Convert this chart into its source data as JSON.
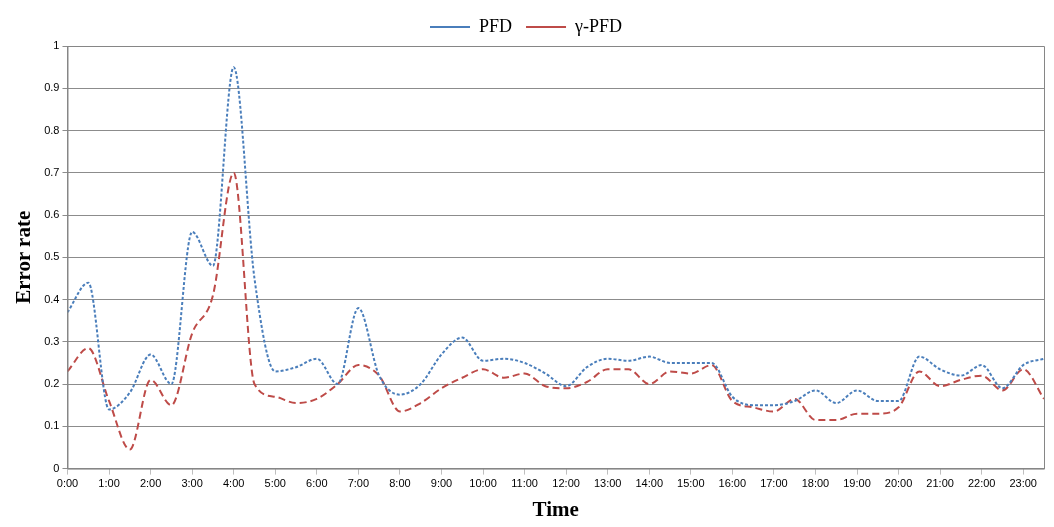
{
  "chart_data": {
    "type": "line",
    "xlabel": "Time",
    "ylabel": "Error rate",
    "x": [
      0,
      0.5,
      1,
      1.5,
      2,
      2.5,
      3,
      3.5,
      4,
      4.5,
      5,
      5.5,
      6,
      6.5,
      7,
      7.5,
      8,
      8.5,
      9,
      9.5,
      10,
      10.5,
      11,
      11.5,
      12,
      12.5,
      13,
      13.5,
      14,
      14.5,
      15,
      15.5,
      16,
      16.5,
      17,
      17.5,
      18,
      18.5,
      19,
      19.5,
      20,
      20.5,
      21,
      21.5,
      22,
      22.5,
      23,
      23.5
    ],
    "series": [
      {
        "name": "PFD",
        "color": "#4a7ebb",
        "line_style": "dotted",
        "values": [
          0.37,
          0.44,
          0.14,
          0.18,
          0.27,
          0.2,
          0.56,
          0.48,
          0.95,
          0.45,
          0.23,
          0.24,
          0.26,
          0.2,
          0.38,
          0.22,
          0.175,
          0.2,
          0.27,
          0.31,
          0.255,
          0.26,
          0.25,
          0.225,
          0.195,
          0.24,
          0.26,
          0.255,
          0.265,
          0.25,
          0.25,
          0.25,
          0.17,
          0.15,
          0.15,
          0.16,
          0.185,
          0.155,
          0.185,
          0.16,
          0.16,
          0.265,
          0.235,
          0.22,
          0.245,
          0.19,
          0.245,
          0.26
        ]
      },
      {
        "name": "γ-PFD",
        "color": "#be4b48",
        "line_style": "dashed",
        "values": [
          0.23,
          0.285,
          0.16,
          0.045,
          0.21,
          0.15,
          0.32,
          0.41,
          0.7,
          0.2,
          0.17,
          0.155,
          0.165,
          0.2,
          0.245,
          0.22,
          0.135,
          0.155,
          0.19,
          0.215,
          0.235,
          0.215,
          0.225,
          0.195,
          0.19,
          0.205,
          0.235,
          0.235,
          0.2,
          0.23,
          0.225,
          0.245,
          0.16,
          0.145,
          0.135,
          0.165,
          0.115,
          0.115,
          0.13,
          0.13,
          0.145,
          0.23,
          0.195,
          0.21,
          0.22,
          0.185,
          0.235,
          0.165
        ]
      }
    ],
    "xlim": [
      0,
      23.5
    ],
    "xticks": [
      {
        "value": 0,
        "label": "0:00"
      },
      {
        "value": 1,
        "label": "1:00"
      },
      {
        "value": 2,
        "label": "2:00"
      },
      {
        "value": 3,
        "label": "3:00"
      },
      {
        "value": 4,
        "label": "4:00"
      },
      {
        "value": 5,
        "label": "5:00"
      },
      {
        "value": 6,
        "label": "6:00"
      },
      {
        "value": 7,
        "label": "7:00"
      },
      {
        "value": 8,
        "label": "8:00"
      },
      {
        "value": 9,
        "label": "9:00"
      },
      {
        "value": 10,
        "label": "10:00"
      },
      {
        "value": 11,
        "label": "11:00"
      },
      {
        "value": 12,
        "label": "12:00"
      },
      {
        "value": 13,
        "label": "13:00"
      },
      {
        "value": 14,
        "label": "14:00"
      },
      {
        "value": 15,
        "label": "15:00"
      },
      {
        "value": 16,
        "label": "16:00"
      },
      {
        "value": 17,
        "label": "17:00"
      },
      {
        "value": 18,
        "label": "18:00"
      },
      {
        "value": 19,
        "label": "19:00"
      },
      {
        "value": 20,
        "label": "20:00"
      },
      {
        "value": 21,
        "label": "21:00"
      },
      {
        "value": 22,
        "label": "22:00"
      },
      {
        "value": 23,
        "label": "23:00"
      }
    ],
    "ylim": [
      0,
      1
    ],
    "yticks": [
      0,
      0.1,
      0.2,
      0.3,
      0.4,
      0.5,
      0.6,
      0.7,
      0.8,
      0.9,
      1
    ],
    "grid": "y",
    "legend": "top",
    "marker": "none"
  }
}
